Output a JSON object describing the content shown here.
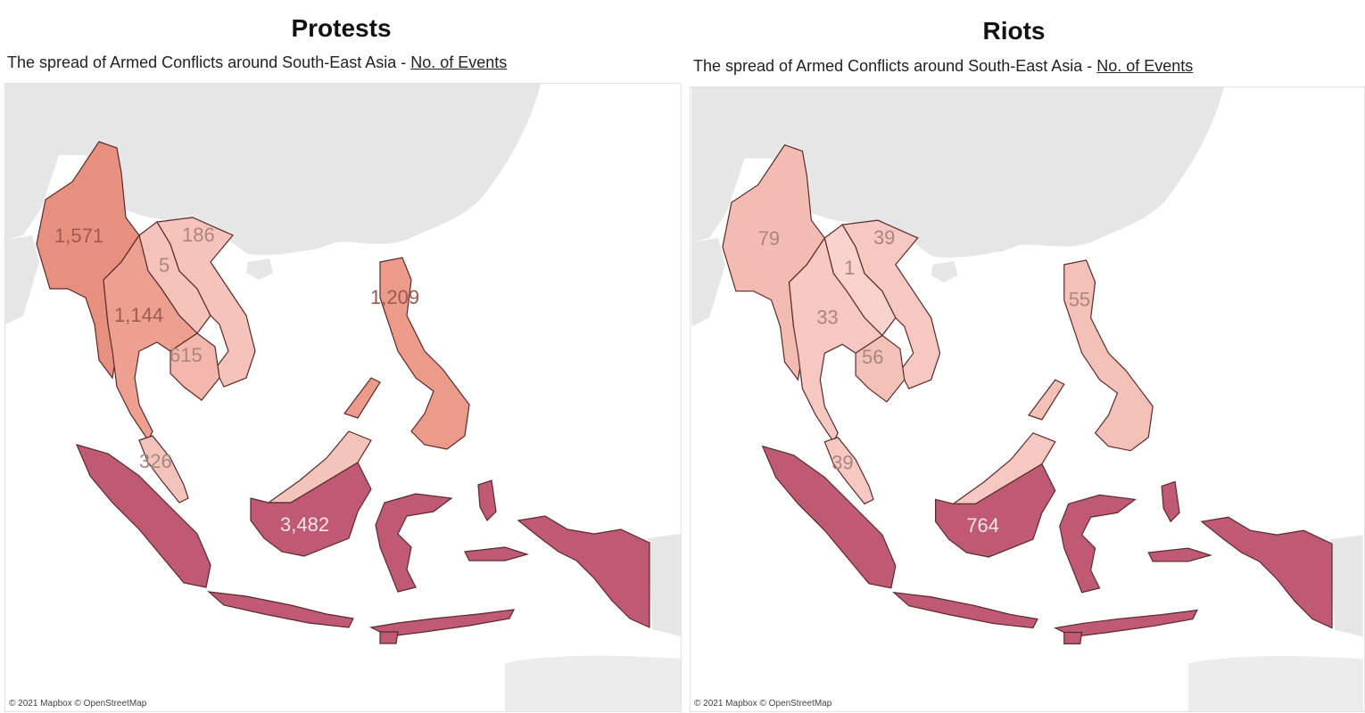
{
  "panels": [
    {
      "title": "Protests",
      "subtitle_prefix": "The spread of Armed Conflicts around South-East Asia - ",
      "subtitle_link": "No. of Events",
      "attribution": "© 2021 Mapbox © OpenStreetMap",
      "regions": [
        {
          "name": "myanmar",
          "value": "1,571",
          "color": "#e8907f"
        },
        {
          "name": "laos",
          "value": "5",
          "color": "#f6c3bb"
        },
        {
          "name": "vietnam",
          "value": "186",
          "color": "#f6c3bb"
        },
        {
          "name": "thailand",
          "value": "1,144",
          "color": "#eda090"
        },
        {
          "name": "cambodia",
          "value": "615",
          "color": "#f4b7ad"
        },
        {
          "name": "malaysia",
          "value": "326",
          "color": "#f3c4bb"
        },
        {
          "name": "philippines",
          "value": "1,209",
          "color": "#ec9a8a"
        },
        {
          "name": "indonesia",
          "value": "3,482",
          "color": "#c05a74"
        }
      ]
    },
    {
      "title": "Riots",
      "subtitle_prefix": "The spread of Armed Conflicts around South-East Asia - ",
      "subtitle_link": "No. of Events",
      "attribution": "© 2021 Mapbox © OpenStreetMap",
      "regions": [
        {
          "name": "myanmar",
          "value": "79",
          "color": "#f3bcb3"
        },
        {
          "name": "laos",
          "value": "1",
          "color": "#f8d3cd"
        },
        {
          "name": "vietnam",
          "value": "39",
          "color": "#f6c8c1"
        },
        {
          "name": "thailand",
          "value": "33",
          "color": "#f6c8c1"
        },
        {
          "name": "cambodia",
          "value": "56",
          "color": "#f4c1b9"
        },
        {
          "name": "malaysia",
          "value": "39",
          "color": "#f6c8c1"
        },
        {
          "name": "philippines",
          "value": "55",
          "color": "#f4c1b9"
        },
        {
          "name": "indonesia",
          "value": "764",
          "color": "#c05a74"
        }
      ]
    }
  ],
  "colors": {
    "land_background": "#e6e6e6",
    "sea": "#ffffff"
  }
}
